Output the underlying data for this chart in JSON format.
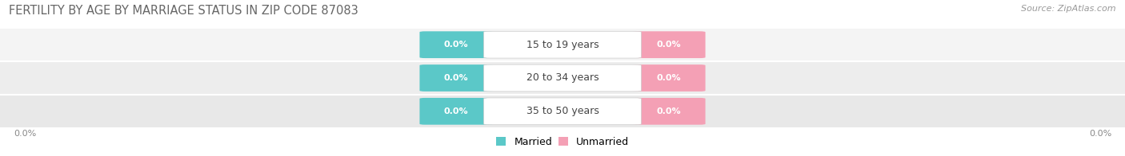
{
  "title": "FERTILITY BY AGE BY MARRIAGE STATUS IN ZIP CODE 87083",
  "source": "Source: ZipAtlas.com",
  "categories": [
    "15 to 19 years",
    "20 to 34 years",
    "35 to 50 years"
  ],
  "married_values": [
    0.0,
    0.0,
    0.0
  ],
  "unmarried_values": [
    0.0,
    0.0,
    0.0
  ],
  "married_color": "#5BC8C8",
  "unmarried_color": "#F4A0B5",
  "row_bg_colors": [
    "#F4F4F4",
    "#EDEDED",
    "#E8E8E8"
  ],
  "title_fontsize": 10.5,
  "source_fontsize": 8,
  "label_fontsize": 9,
  "value_fontsize": 8,
  "legend_married": "Married",
  "legend_unmarried": "Unmarried",
  "left_axis_label": "0.0%",
  "right_axis_label": "0.0%"
}
